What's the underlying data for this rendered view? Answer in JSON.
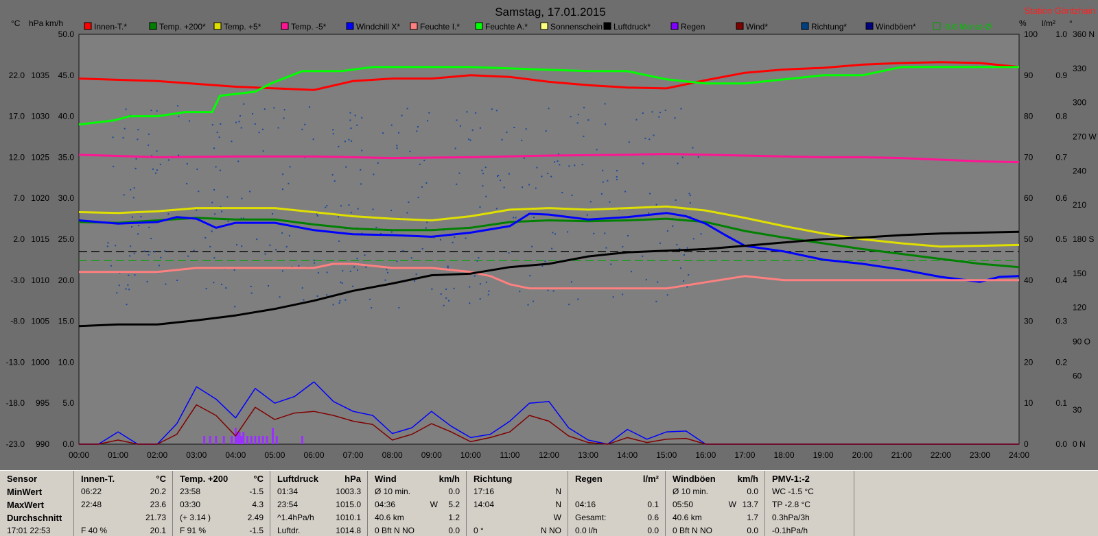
{
  "chart_data": {
    "type": "line",
    "title": "Samstag, 17.01.2015",
    "station": "Station Göritzhain",
    "x_ticks": [
      "00:00",
      "01:00",
      "02:00",
      "03:00",
      "04:00",
      "05:00",
      "06:00",
      "07:00",
      "08:00",
      "09:00",
      "10:00",
      "11:00",
      "12:00",
      "13:00",
      "14:00",
      "15:00",
      "16:00",
      "17:00",
      "18:00",
      "19:00",
      "20:00",
      "21:00",
      "22:00",
      "23:00",
      "24:00"
    ],
    "axes": {
      "temp": {
        "label": "°C",
        "ticks": [
          "22.0",
          "17.0",
          "12.0",
          "7.0",
          "2.0",
          "-3.0",
          "-8.0",
          "-13.0",
          "-18.0",
          "-23.0"
        ],
        "range": [
          -23,
          27
        ]
      },
      "pressure": {
        "label": "hPa",
        "ticks": [
          "1035",
          "1030",
          "1025",
          "1020",
          "1015",
          "1010",
          "1005",
          "1000",
          "995",
          "990"
        ],
        "range": [
          990,
          1040
        ]
      },
      "wind": {
        "label": "km/h",
        "ticks": [
          "50.0",
          "45.0",
          "40.0",
          "35.0",
          "30.0",
          "25.0",
          "20.0",
          "15.0",
          "10.0",
          "5.0",
          "0.0"
        ],
        "range": [
          0,
          50
        ]
      },
      "humidity": {
        "label": "%",
        "ticks": [
          "100",
          "90",
          "80",
          "70",
          "60",
          "50",
          "40",
          "30",
          "20",
          "10",
          "0"
        ],
        "range": [
          0,
          100
        ]
      },
      "rain": {
        "label": "l/m²",
        "ticks": [
          "1.0",
          "0.9",
          "0.8",
          "0.7",
          "0.6",
          "0.5",
          "0.4",
          "0.3",
          "0.2",
          "0.1",
          "0.0"
        ],
        "range": [
          0,
          1
        ]
      },
      "direction": {
        "label": "°",
        "ticks": [
          "360 N",
          "330",
          "300",
          "270 W",
          "240",
          "210",
          "180 S",
          "150",
          "120",
          "90 O",
          "60",
          "30",
          "0 N"
        ],
        "range": [
          0,
          360
        ]
      }
    },
    "legend": [
      {
        "name": "Innen-T.*",
        "color": "#ff0000"
      },
      {
        "name": "Temp. +200*",
        "color": "#008000"
      },
      {
        "name": "Temp. +5*",
        "color": "#e0e000"
      },
      {
        "name": "Temp. -5*",
        "color": "#ff1493"
      },
      {
        "name": "Windchill X*",
        "color": "#0000ff"
      },
      {
        "name": "Feuchte I.*",
        "color": "#ff8080"
      },
      {
        "name": "Feuchte A.*",
        "color": "#00ff00"
      },
      {
        "name": "Sonnenschein",
        "color": "#ffff80"
      },
      {
        "name": "Luftdruck*",
        "color": "#000000"
      },
      {
        "name": "Regen",
        "color": "#8000ff"
      },
      {
        "name": "Wind*",
        "color": "#800000"
      },
      {
        "name": "Richtung*",
        "color": "#004080"
      },
      {
        "name": "Windböen*",
        "color": "#000080"
      },
      {
        "name": "-0.6 Monat-Ø",
        "color": "#00a000"
      }
    ],
    "series": [
      {
        "name": "Innen-T.*",
        "color": "#ff0000",
        "axis": "temp",
        "x": [
          0,
          2,
          4,
          6,
          7,
          8,
          9,
          10,
          11,
          12,
          13,
          14,
          15,
          16,
          17,
          18,
          19,
          20,
          21,
          22,
          23,
          24
        ],
        "y": [
          21.6,
          21.3,
          20.6,
          20.2,
          21.3,
          21.6,
          21.6,
          22.0,
          21.8,
          21.2,
          20.8,
          20.5,
          20.4,
          21.4,
          22.3,
          22.7,
          22.9,
          23.3,
          23.5,
          23.6,
          23.5,
          23.0
        ]
      },
      {
        "name": "Feuchte A.*",
        "color": "#00ff00",
        "axis": "humidity",
        "x": [
          0,
          0.9,
          1.3,
          2.0,
          2.7,
          3.4,
          3.6,
          4.5,
          4.9,
          5.7,
          6.0,
          6.7,
          7.5,
          10,
          13,
          14,
          15,
          16,
          16.5,
          17,
          18,
          19,
          20,
          21,
          22,
          23,
          24
        ],
        "y": [
          78,
          79,
          80,
          80,
          81,
          81,
          85,
          86,
          88,
          91,
          91,
          91,
          92,
          92,
          91,
          91,
          89,
          88,
          88,
          88,
          89,
          90,
          90,
          92,
          92,
          92,
          92
        ]
      },
      {
        "name": "Temp. -5*",
        "color": "#ff1493",
        "axis": "wind",
        "x": [
          0,
          2,
          4,
          6,
          8,
          10,
          12,
          14,
          15,
          16,
          17,
          18,
          19,
          20,
          21,
          22,
          23,
          24
        ],
        "y": [
          35.3,
          35.0,
          35.1,
          35.1,
          34.9,
          35.0,
          35.2,
          35.3,
          35.4,
          35.3,
          35.2,
          35.1,
          35.0,
          35.0,
          34.9,
          34.7,
          34.5,
          34.4
        ]
      },
      {
        "name": "Temp. +5*",
        "color": "#e0e000",
        "axis": "wind",
        "x": [
          0,
          1,
          2,
          3,
          4,
          5,
          6,
          7,
          8,
          9,
          10,
          11,
          12,
          13,
          14,
          15,
          16,
          17,
          18,
          19,
          20,
          21,
          22,
          23,
          24
        ],
        "y": [
          28.3,
          28.2,
          28.4,
          28.8,
          28.8,
          28.8,
          28.3,
          27.8,
          27.5,
          27.3,
          27.8,
          28.6,
          28.8,
          28.6,
          28.8,
          29.0,
          28.5,
          27.6,
          26.6,
          25.7,
          25.0,
          24.5,
          24.1,
          24.2,
          24.3
        ]
      },
      {
        "name": "Temp. +200*",
        "color": "#008000",
        "axis": "wind",
        "x": [
          0,
          1,
          2,
          3,
          4,
          5,
          6,
          7,
          8,
          9,
          10,
          11,
          12,
          13,
          14,
          15,
          16,
          17,
          18,
          19,
          20,
          21,
          22,
          23,
          24
        ],
        "y": [
          27.1,
          27.0,
          27.3,
          27.6,
          27.4,
          27.4,
          26.8,
          26.3,
          26.1,
          26.1,
          26.4,
          27.1,
          27.3,
          27.2,
          27.3,
          27.5,
          27.1,
          26.0,
          25.2,
          24.5,
          23.8,
          23.2,
          22.6,
          22.0,
          21.6
        ]
      },
      {
        "name": "Windchill X*",
        "color": "#0000ff",
        "axis": "wind",
        "x": [
          0,
          1,
          2,
          2.5,
          3,
          3.5,
          4,
          5,
          6,
          7,
          8,
          9,
          10,
          11,
          11.5,
          12,
          13,
          14,
          15,
          15.5,
          16,
          16.5,
          17,
          18,
          19,
          20,
          21,
          22,
          22.5,
          23,
          23.5,
          24
        ],
        "y": [
          27.3,
          26.9,
          27.1,
          27.7,
          27.5,
          26.4,
          27.0,
          27.0,
          26.1,
          25.6,
          25.5,
          25.3,
          25.8,
          26.6,
          28.1,
          28.0,
          27.4,
          27.7,
          28.2,
          27.8,
          26.9,
          25.5,
          24.2,
          23.5,
          22.5,
          22.0,
          21.3,
          20.4,
          20.1,
          19.8,
          20.4,
          20.5
        ]
      },
      {
        "name": "Feuchte I.*",
        "color": "#ff8080",
        "axis": "humidity",
        "x": [
          0,
          2,
          3,
          4,
          5,
          6,
          6.5,
          7,
          8,
          9,
          10,
          10.5,
          11,
          11.5,
          12,
          13,
          14,
          15,
          16,
          17,
          18,
          19,
          20,
          21,
          22,
          23,
          24
        ],
        "y": [
          42,
          42,
          43,
          43,
          43,
          43,
          44,
          44,
          43,
          43,
          42,
          41,
          39,
          38,
          38,
          38,
          38,
          38,
          39.5,
          41,
          40,
          40,
          40,
          40,
          40,
          40,
          40
        ]
      },
      {
        "name": "Luftdruck*",
        "color": "#000000",
        "axis": "pressure",
        "x": [
          0,
          1,
          2,
          3,
          4,
          5,
          6,
          7,
          8,
          9,
          10,
          11,
          12,
          13,
          14,
          15,
          16,
          17,
          18,
          19,
          20,
          21,
          22,
          23,
          24
        ],
        "y": [
          1004.4,
          1004.6,
          1004.6,
          1005.1,
          1005.7,
          1006.5,
          1007.5,
          1008.7,
          1009.6,
          1010.6,
          1010.8,
          1011.6,
          1012.0,
          1012.9,
          1013.4,
          1013.6,
          1013.8,
          1014.2,
          1014.6,
          1015.0,
          1015.2,
          1015.5,
          1015.7,
          1015.8,
          1015.9
        ]
      },
      {
        "name": "Windböen*",
        "color": "#0000ff",
        "axis": "wind",
        "x": [
          0,
          0.5,
          1,
          1.5,
          2,
          2.5,
          3,
          3.5,
          4,
          4.5,
          5,
          5.5,
          6,
          6.5,
          7,
          7.5,
          8,
          8.5,
          9,
          9.5,
          10,
          10.5,
          11,
          11.5,
          12,
          12.5,
          13,
          13.5,
          14,
          14.5,
          15,
          15.5,
          16,
          24
        ],
        "y": [
          0,
          0,
          1.5,
          0,
          0,
          2.5,
          7.0,
          5.5,
          3.2,
          6.8,
          5.0,
          5.8,
          7.6,
          5.2,
          4.0,
          3.5,
          1.3,
          2.0,
          4.0,
          2.2,
          0.8,
          1.2,
          2.8,
          5.0,
          5.2,
          2.0,
          0.5,
          0,
          1.8,
          0.6,
          1.5,
          1.6,
          0,
          0
        ]
      },
      {
        "name": "Wind*",
        "color": "#800000",
        "axis": "wind",
        "x": [
          0,
          0.5,
          1,
          1.5,
          2,
          2.5,
          3,
          3.5,
          4,
          4.5,
          5,
          5.5,
          6,
          6.5,
          7,
          7.5,
          8,
          8.5,
          9,
          9.5,
          10,
          10.5,
          11,
          11.5,
          12,
          12.5,
          13,
          13.5,
          14,
          14.5,
          15,
          15.5,
          16,
          24
        ],
        "y": [
          0,
          0,
          0.5,
          0,
          0,
          1.2,
          4.8,
          3.5,
          1.0,
          4.5,
          3.0,
          3.8,
          4.0,
          3.5,
          2.8,
          2.4,
          0.5,
          1.2,
          2.5,
          1.5,
          0.3,
          0.8,
          1.5,
          3.5,
          2.8,
          1.0,
          0.2,
          0,
          0.8,
          0.2,
          0.6,
          0.7,
          0,
          0
        ]
      }
    ],
    "direction_points": {
      "axis": "direction",
      "x_range": [
        0.7,
        15.9
      ],
      "y_range": [
        120,
        300
      ]
    },
    "rain_bars": {
      "axis": "rain",
      "x": [
        3.2,
        3.35,
        3.5,
        3.7,
        3.9,
        4.0,
        4.05,
        4.1,
        4.15,
        4.2,
        4.3,
        4.4,
        4.5,
        4.6,
        4.7,
        4.8,
        4.95,
        5.05,
        5.7
      ],
      "y": [
        0.02,
        0.02,
        0.02,
        0.02,
        0.02,
        0.04,
        0.03,
        0.03,
        0.02,
        0.03,
        0.02,
        0.02,
        0.02,
        0.02,
        0.02,
        0.02,
        0.04,
        0.02,
        0.02
      ]
    },
    "reference_lines": [
      {
        "axis": "temp",
        "y": 0.5,
        "color": "#000000",
        "style": "dashed"
      },
      {
        "axis": "temp",
        "y": -0.6,
        "color": "#00a000",
        "style": "dashed"
      }
    ]
  },
  "table": {
    "columns": [
      {
        "title": "Sensor",
        "unit": "",
        "rows": [
          [
            "MinWert",
            "",
            ""
          ],
          [
            "MaxWert",
            "",
            ""
          ],
          [
            "Durchschnitt",
            "",
            ""
          ],
          [
            "17:01 22:53",
            "",
            ""
          ]
        ]
      },
      {
        "title": "Innen-T.",
        "unit": "°C",
        "rows": [
          [
            "06:22",
            "",
            "20.2"
          ],
          [
            "22:48",
            "",
            "23.6"
          ],
          [
            "",
            "",
            "21.73"
          ],
          [
            "F 40 %",
            "",
            "20.1"
          ]
        ]
      },
      {
        "title": "Temp. +200",
        "unit": "°C",
        "rows": [
          [
            "23:58",
            "",
            "-1.5"
          ],
          [
            "03:30",
            "",
            "4.3"
          ],
          [
            "(+ 3.14 )",
            "",
            "2.49"
          ],
          [
            "F 91 %",
            "",
            "-1.5"
          ]
        ]
      },
      {
        "title": "Luftdruck",
        "unit": "hPa",
        "rows": [
          [
            "01:34",
            "",
            "1003.3"
          ],
          [
            "23:54",
            "",
            "1015.0"
          ],
          [
            "^1.4hPa/h",
            "",
            "1010.1"
          ],
          [
            "Luftdr.",
            "",
            "1014.8"
          ]
        ]
      },
      {
        "title": "Wind",
        "unit": "km/h",
        "rows": [
          [
            "Ø 10 min.",
            "",
            "0.0"
          ],
          [
            "04:36",
            "W",
            "5.2"
          ],
          [
            "40.6 km",
            "",
            "1.2"
          ],
          [
            "0 Bft N NO",
            "",
            "0.0"
          ]
        ]
      },
      {
        "title": "Richtung",
        "unit": "",
        "rows": [
          [
            "17:16",
            "",
            "N"
          ],
          [
            "14:04",
            "",
            "N"
          ],
          [
            "",
            "",
            "W"
          ],
          [
            "0 °",
            "",
            "N NO"
          ]
        ]
      },
      {
        "title": "Regen",
        "unit": "l/m²",
        "rows": [
          [
            "",
            "",
            ""
          ],
          [
            "04:16",
            "",
            "0.1"
          ],
          [
            "Gesamt:",
            "",
            "0.6"
          ],
          [
            "0.0 l/h",
            "",
            "0.0"
          ]
        ]
      },
      {
        "title": "Windböen",
        "unit": "km/h",
        "rows": [
          [
            "Ø 10 min.",
            "",
            "0.0"
          ],
          [
            "05:50",
            "W",
            "13.7"
          ],
          [
            "40.6 km",
            "",
            "1.7"
          ],
          [
            "0 Bft N NO",
            "",
            "0.0"
          ]
        ]
      },
      {
        "title": "PMV-1:-2",
        "unit": "",
        "rows": [
          [
            "WC -1.5 °C",
            "",
            ""
          ],
          [
            "TP -2.8 °C",
            "",
            ""
          ],
          [
            "0.3hPa/3h",
            "",
            ""
          ],
          [
            "-0.1hPa/h",
            "",
            ""
          ]
        ]
      }
    ]
  }
}
